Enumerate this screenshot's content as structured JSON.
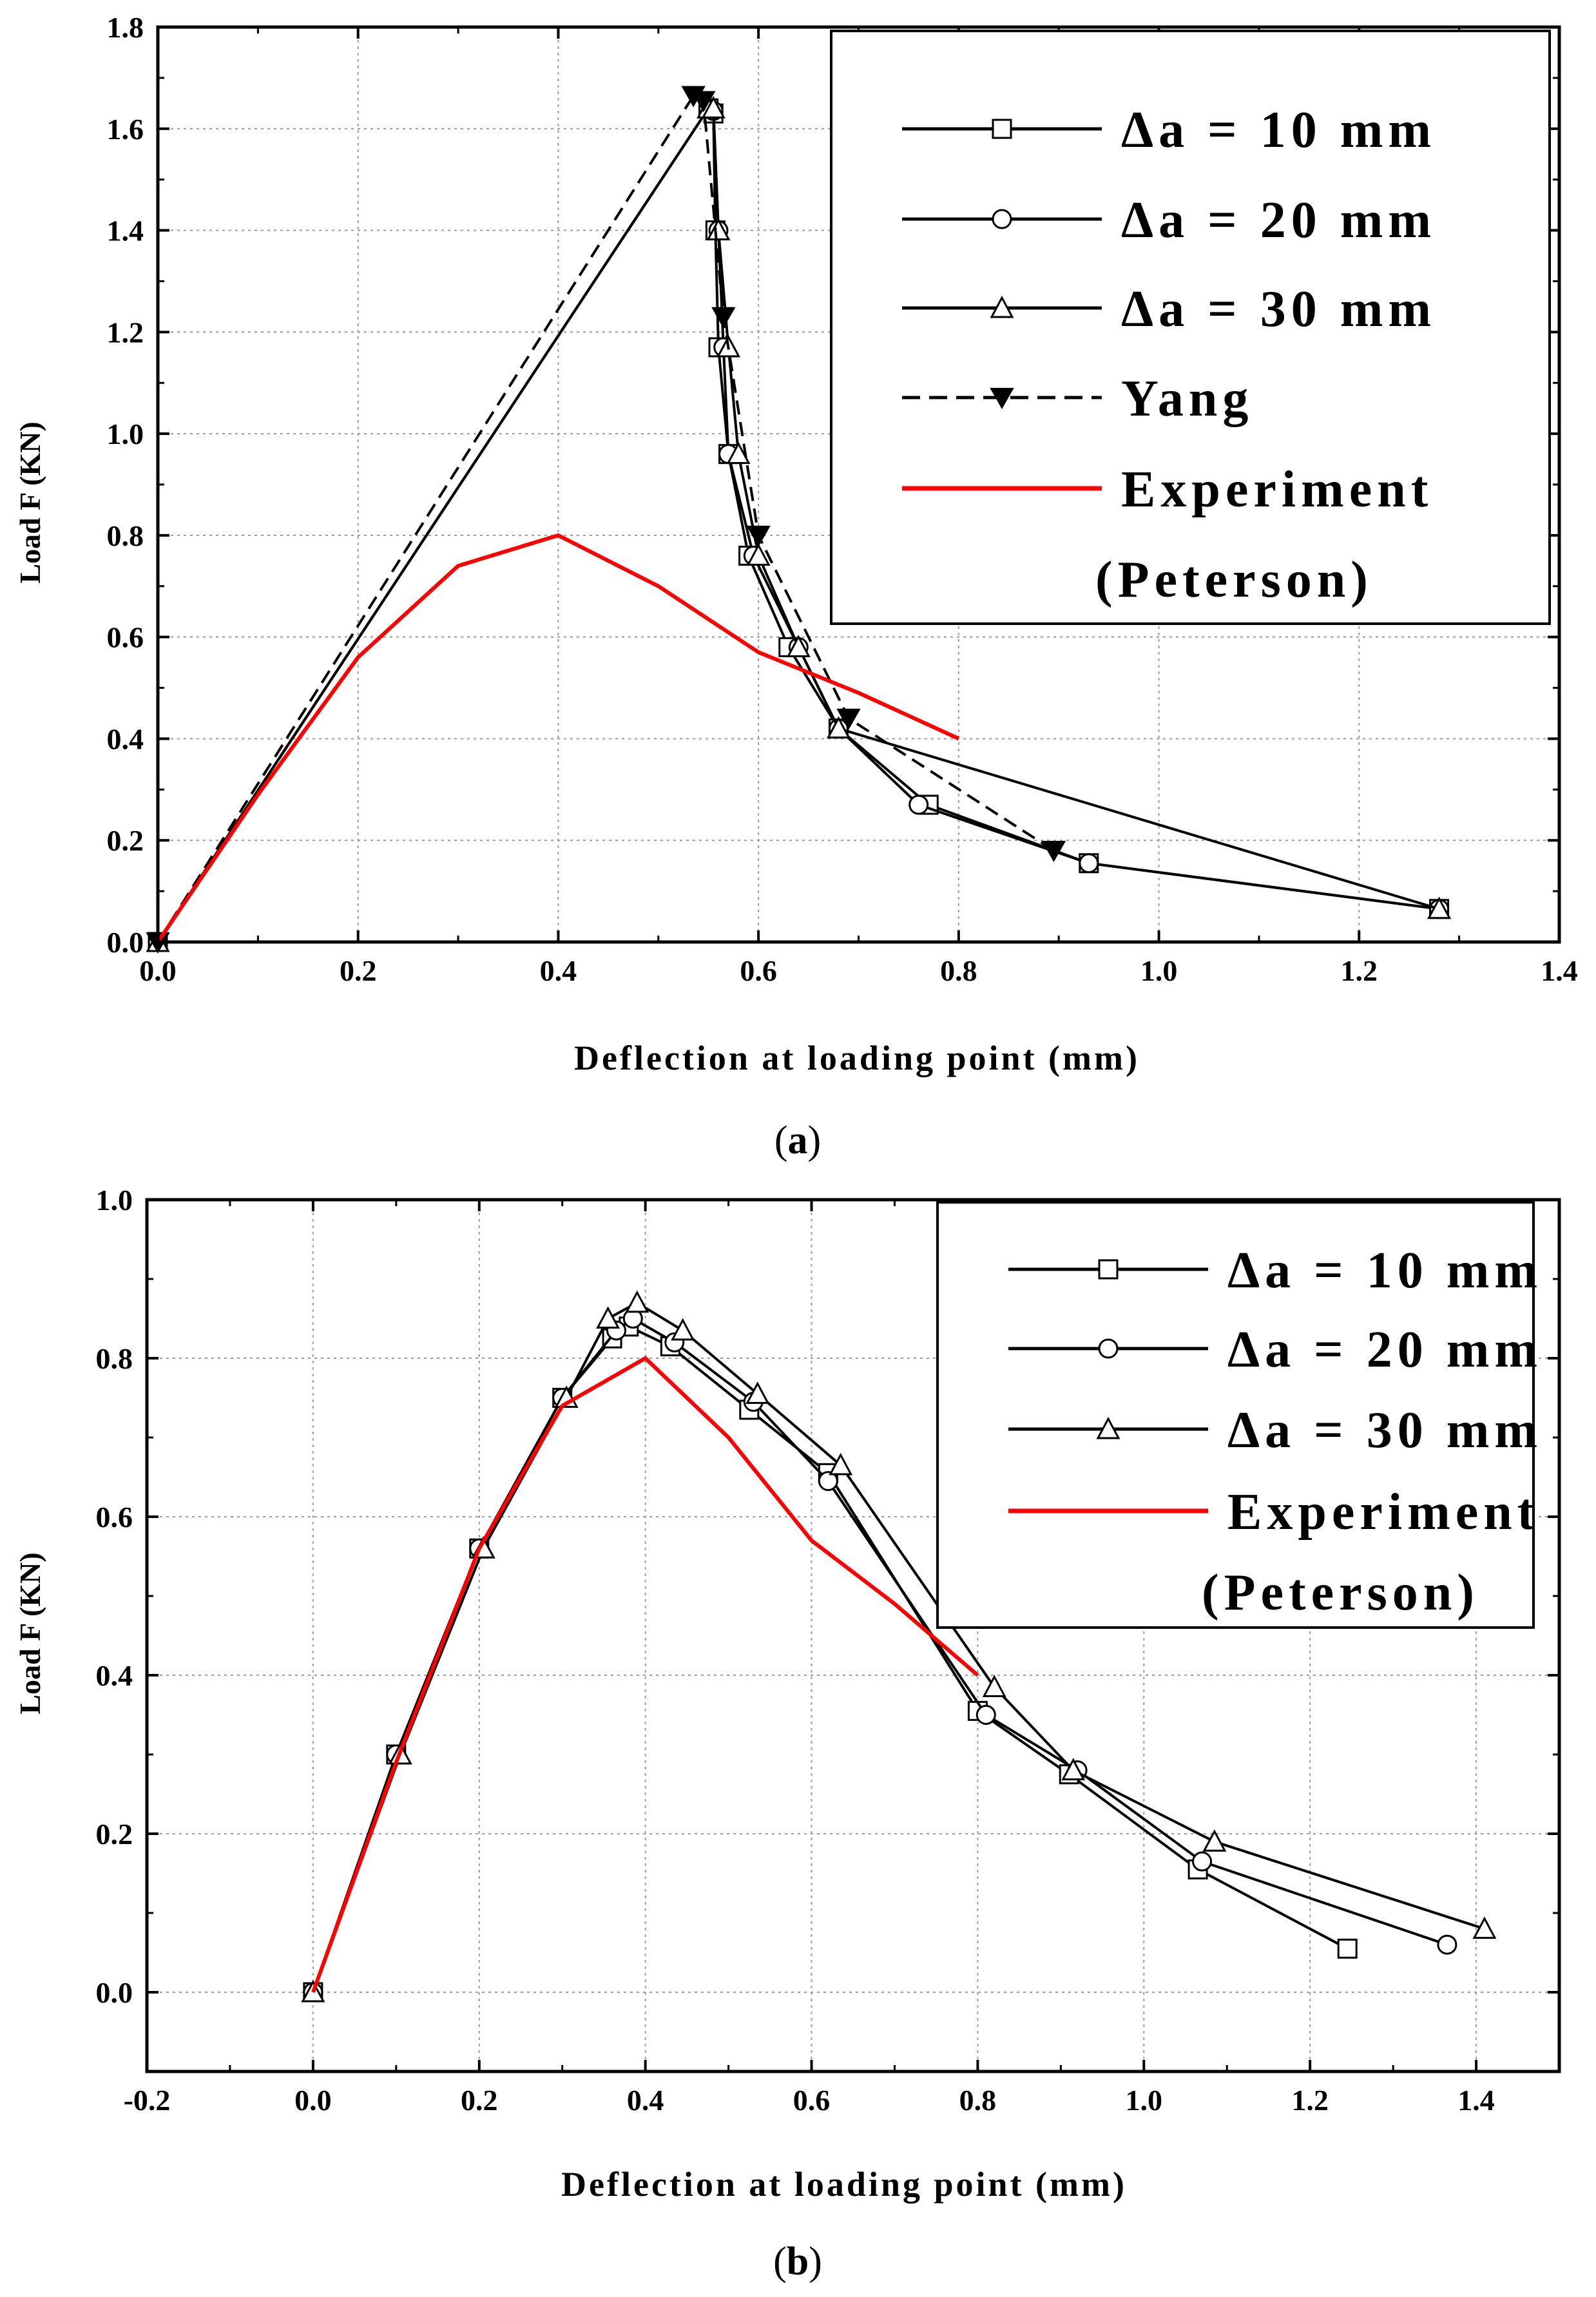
{
  "chart_data": [
    {
      "id": "a",
      "type": "line",
      "caption": "a",
      "xlabel": "Deflection at loading point (mm)",
      "ylabel": "Load F (KN)",
      "xlim": [
        0.0,
        1.4
      ],
      "ylim": [
        0.0,
        1.8
      ],
      "xticks": [
        "0.0",
        "0.2",
        "0.4",
        "0.6",
        "0.8",
        "1.0",
        "1.2",
        "1.4"
      ],
      "yticks": [
        "0.0",
        "0.2",
        "0.4",
        "0.6",
        "0.8",
        "1.0",
        "1.2",
        "1.4",
        "1.6",
        "1.8"
      ],
      "grid": true,
      "legend_position": "top-right",
      "series": [
        {
          "name": "Δa = 10 mm",
          "color": "#000000",
          "marker": "square",
          "dash": false,
          "x": [
            0.0,
            0.55,
            0.555,
            0.557,
            0.56,
            0.57,
            0.59,
            0.63,
            0.68,
            0.77,
            0.93,
            1.28
          ],
          "y": [
            0.0,
            1.64,
            1.63,
            1.4,
            1.17,
            0.96,
            0.76,
            0.58,
            0.42,
            0.27,
            0.155,
            0.065
          ]
        },
        {
          "name": "Δa = 20 mm",
          "color": "#000000",
          "marker": "circle",
          "dash": false,
          "x": [
            0.0,
            0.55,
            0.555,
            0.56,
            0.565,
            0.57,
            0.595,
            0.64,
            0.68,
            0.76,
            0.93,
            1.28
          ],
          "y": [
            0.0,
            1.64,
            1.635,
            1.4,
            1.17,
            0.96,
            0.76,
            0.58,
            0.42,
            0.27,
            0.155,
            0.065
          ]
        },
        {
          "name": "Δa = 30 mm",
          "color": "#000000",
          "marker": "triangle",
          "dash": false,
          "x": [
            0.0,
            0.55,
            0.555,
            0.56,
            0.57,
            0.58,
            0.6,
            0.64,
            0.68,
            1.28
          ],
          "y": [
            0.0,
            1.64,
            1.64,
            1.4,
            1.17,
            0.96,
            0.76,
            0.58,
            0.42,
            0.065
          ]
        },
        {
          "name": "Yang",
          "color": "#000000",
          "marker": "triangle-down",
          "dash": true,
          "x": [
            0.0,
            0.535,
            0.545,
            0.565,
            0.6,
            0.69,
            0.895
          ],
          "y": [
            0.0,
            1.665,
            1.655,
            1.23,
            0.8,
            0.44,
            0.18
          ]
        },
        {
          "name": "Experiment",
          "name_line2": "(Peterson)",
          "color": "#ff0000",
          "marker": "none",
          "dash": false,
          "x": [
            0.0,
            0.1,
            0.2,
            0.3,
            0.4,
            0.5,
            0.6,
            0.7,
            0.8
          ],
          "y": [
            0.0,
            0.29,
            0.56,
            0.74,
            0.8,
            0.7,
            0.57,
            0.49,
            0.4
          ]
        }
      ]
    },
    {
      "id": "b",
      "type": "line",
      "caption": "b",
      "xlabel": "Deflection at loading point (mm)",
      "ylabel": "Load F (KN)",
      "xlim": [
        -0.2,
        1.5
      ],
      "ylim": [
        -0.1,
        1.0
      ],
      "xticks": [
        "-0.2",
        "0.0",
        "0.2",
        "0.4",
        "0.6",
        "0.8",
        "1.0",
        "1.2",
        "1.4"
      ],
      "yticks": [
        "0.0",
        "0.2",
        "0.4",
        "0.6",
        "0.8",
        "1.0"
      ],
      "grid": true,
      "legend_position": "top-right",
      "series": [
        {
          "name": "Δa = 10 mm",
          "color": "#000000",
          "marker": "square",
          "dash": false,
          "x": [
            0.0,
            0.1,
            0.2,
            0.3,
            0.36,
            0.38,
            0.43,
            0.525,
            0.62,
            0.8,
            0.91,
            1.065,
            1.245
          ],
          "y": [
            0.0,
            0.3,
            0.56,
            0.75,
            0.825,
            0.84,
            0.815,
            0.735,
            0.655,
            0.355,
            0.275,
            0.155,
            0.055
          ]
        },
        {
          "name": "Δa = 20 mm",
          "color": "#000000",
          "marker": "circle",
          "dash": false,
          "x": [
            0.0,
            0.1,
            0.2,
            0.3,
            0.365,
            0.385,
            0.435,
            0.53,
            0.62,
            0.81,
            0.92,
            1.07,
            1.365
          ],
          "y": [
            0.0,
            0.3,
            0.56,
            0.75,
            0.835,
            0.85,
            0.82,
            0.745,
            0.645,
            0.35,
            0.28,
            0.165,
            0.06
          ]
        },
        {
          "name": "Δa = 30 mm",
          "color": "#000000",
          "marker": "triangle",
          "dash": false,
          "x": [
            0.0,
            0.105,
            0.205,
            0.305,
            0.355,
            0.39,
            0.445,
            0.535,
            0.635,
            0.82,
            0.915,
            1.085,
            1.41
          ],
          "y": [
            0.0,
            0.3,
            0.56,
            0.75,
            0.85,
            0.87,
            0.835,
            0.755,
            0.665,
            0.385,
            0.28,
            0.19,
            0.08
          ]
        },
        {
          "name": "Experiment",
          "name_line2": "(Peterson)",
          "color": "#ff0000",
          "marker": "none",
          "dash": false,
          "x": [
            0.0,
            0.1,
            0.2,
            0.3,
            0.4,
            0.5,
            0.6,
            0.7,
            0.8
          ],
          "y": [
            0.0,
            0.29,
            0.56,
            0.74,
            0.8,
            0.7,
            0.57,
            0.49,
            0.4
          ]
        }
      ]
    }
  ]
}
